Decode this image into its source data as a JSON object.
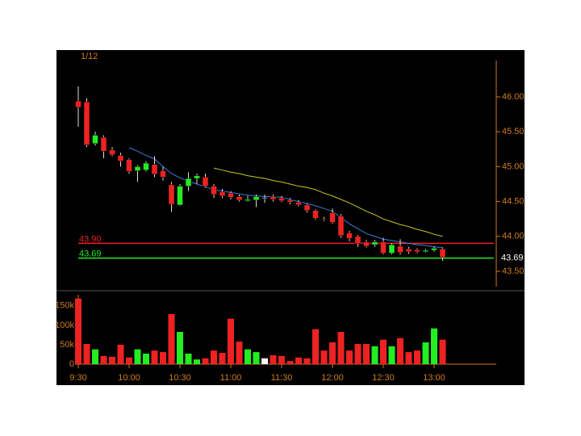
{
  "chart_data": {
    "type": "candlestick",
    "date_label": "1/12",
    "categories": [
      "9:30",
      null,
      null,
      null,
      null,
      null,
      "10:00",
      null,
      null,
      null,
      null,
      null,
      "10:30",
      null,
      null,
      null,
      null,
      null,
      "11:00",
      null,
      null,
      null,
      null,
      null,
      "11:30",
      null,
      null,
      null,
      null,
      null,
      "12:00",
      null,
      null,
      null,
      null,
      null,
      "12:30",
      null,
      null,
      null,
      null,
      null,
      "13:00",
      null
    ],
    "open": [
      45.94,
      45.93,
      45.33,
      45.42,
      45.24,
      45.16,
      45.1,
      44.94,
      44.95,
      45.03,
      44.94,
      44.74,
      44.45,
      44.72,
      44.83,
      44.85,
      44.72,
      44.64,
      44.62,
      44.57,
      44.51,
      44.52,
      44.55,
      44.57,
      44.55,
      44.52,
      44.49,
      44.45,
      44.37,
      44.25,
      44.34,
      44.29,
      44.05,
      44.0,
      43.92,
      43.88,
      43.92,
      43.76,
      43.86,
      43.82,
      43.81,
      43.78,
      43.8,
      43.82
    ],
    "high": [
      46.15,
      45.98,
      45.5,
      45.45,
      45.28,
      45.2,
      45.12,
      45.02,
      45.08,
      45.15,
      45.0,
      44.78,
      44.75,
      44.92,
      44.9,
      44.9,
      44.75,
      44.68,
      44.65,
      44.6,
      44.58,
      44.6,
      44.6,
      44.6,
      44.58,
      44.55,
      44.52,
      44.47,
      44.39,
      44.28,
      44.4,
      44.32,
      44.08,
      44.02,
      43.95,
      43.95,
      43.98,
      43.9,
      43.96,
      43.85,
      43.83,
      43.82,
      43.86,
      43.84
    ],
    "low": [
      45.57,
      45.28,
      45.3,
      45.12,
      45.15,
      45.0,
      44.9,
      44.78,
      44.93,
      44.85,
      44.8,
      44.35,
      44.44,
      44.65,
      44.75,
      44.7,
      44.55,
      44.55,
      44.53,
      44.5,
      44.5,
      44.42,
      44.48,
      44.5,
      44.49,
      44.46,
      44.43,
      44.34,
      44.24,
      44.22,
      44.18,
      43.98,
      43.93,
      43.85,
      43.84,
      43.85,
      43.74,
      43.74,
      43.74,
      43.75,
      43.76,
      43.77,
      43.78,
      43.65
    ],
    "close": [
      45.85,
      45.31,
      45.45,
      45.22,
      45.17,
      45.08,
      44.93,
      45.0,
      45.05,
      44.89,
      44.85,
      44.46,
      44.72,
      44.83,
      44.87,
      44.72,
      44.6,
      44.58,
      44.56,
      44.52,
      44.53,
      44.57,
      44.55,
      44.53,
      44.51,
      44.49,
      44.45,
      44.37,
      44.26,
      44.24,
      44.2,
      44.01,
      43.97,
      43.9,
      43.86,
      43.92,
      43.76,
      43.88,
      43.77,
      43.78,
      43.78,
      43.8,
      43.83,
      43.7
    ],
    "up_color": "#22ee22",
    "down_color": "#ee2222",
    "flat_color": "#ffffff",
    "ma_lines": [
      {
        "color": "#3a7fd8",
        "values": [
          null,
          null,
          null,
          null,
          null,
          null,
          45.27,
          45.22,
          45.16,
          45.11,
          45.0,
          44.9,
          44.84,
          44.79,
          44.75,
          44.71,
          44.67,
          44.65,
          44.63,
          44.61,
          44.59,
          44.58,
          44.57,
          44.57,
          44.56,
          44.53,
          44.5,
          44.47,
          44.44,
          44.4,
          44.36,
          44.27,
          44.18,
          44.11,
          44.04,
          44.0,
          43.96,
          43.94,
          43.92,
          43.9,
          43.88,
          43.87,
          43.85,
          43.84
        ]
      },
      {
        "color": "#c8c820",
        "values": [
          null,
          null,
          null,
          null,
          null,
          null,
          null,
          null,
          null,
          null,
          null,
          null,
          null,
          null,
          null,
          null,
          44.98,
          44.95,
          44.92,
          44.9,
          44.87,
          44.85,
          44.83,
          44.8,
          44.78,
          44.75,
          44.72,
          44.7,
          44.67,
          44.62,
          44.58,
          44.53,
          44.48,
          44.42,
          44.36,
          44.31,
          44.25,
          44.21,
          44.17,
          44.14,
          44.1,
          44.07,
          44.03,
          44.0
        ]
      }
    ],
    "levels": [
      {
        "value": 43.9,
        "label": "43.90",
        "color": "#ee2222"
      },
      {
        "value": 43.69,
        "label": "43.69",
        "color": "#22ee22"
      }
    ],
    "ylim": [
      43.28,
      46.52
    ],
    "yticks": [
      {
        "value": 46,
        "label": "46.00"
      },
      {
        "value": 45.5,
        "label": "45.50"
      },
      {
        "value": 45,
        "label": "45.00"
      },
      {
        "value": 44.5,
        "label": "44.50"
      },
      {
        "value": 44,
        "label": "44.00"
      },
      {
        "value": 43.5,
        "label": "43.50"
      }
    ],
    "axis_color": "#d07a20",
    "volume": {
      "values": [
        169000,
        52000,
        38000,
        21000,
        19000,
        50000,
        17000,
        38000,
        27000,
        35000,
        31000,
        129000,
        83000,
        27000,
        12000,
        15000,
        35000,
        29000,
        117000,
        58000,
        38000,
        31000,
        15000,
        23000,
        21000,
        8000,
        17000,
        15000,
        90000,
        35000,
        56000,
        83000,
        35000,
        52000,
        52000,
        46000,
        63000,
        46000,
        67000,
        31000,
        35000,
        56000,
        92000,
        63000
      ],
      "ylim": [
        0,
        185000
      ],
      "yticks": [
        0,
        {
          "value": 50000,
          "label": "50k"
        },
        {
          "value": 100000,
          "label": "100k"
        },
        {
          "value": 150000,
          "label": "150k"
        }
      ]
    }
  }
}
